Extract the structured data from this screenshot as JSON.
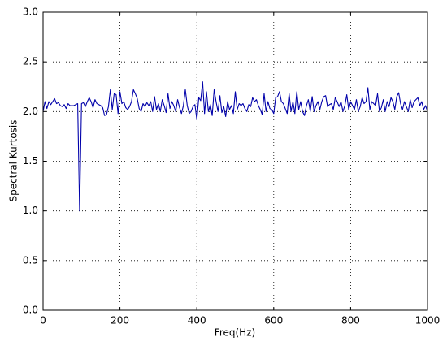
{
  "chart_data": {
    "type": "line",
    "xlabel": "Freq(Hz)",
    "ylabel": "Spectral Kurtosis",
    "x": [
      0,
      5,
      10,
      15,
      20,
      25,
      30,
      35,
      40,
      45,
      50,
      55,
      60,
      65,
      70,
      75,
      80,
      85,
      90,
      95,
      100,
      105,
      110,
      115,
      120,
      125,
      130,
      135,
      140,
      145,
      150,
      155,
      160,
      165,
      170,
      175,
      180,
      185,
      190,
      195,
      200,
      205,
      210,
      215,
      220,
      225,
      230,
      235,
      240,
      245,
      250,
      255,
      260,
      265,
      270,
      275,
      280,
      285,
      290,
      295,
      300,
      305,
      310,
      315,
      320,
      325,
      330,
      335,
      340,
      345,
      350,
      355,
      360,
      365,
      370,
      375,
      380,
      385,
      390,
      395,
      400,
      405,
      410,
      415,
      420,
      425,
      430,
      435,
      440,
      445,
      450,
      455,
      460,
      465,
      470,
      475,
      480,
      485,
      490,
      495,
      500,
      505,
      510,
      515,
      520,
      525,
      530,
      535,
      540,
      545,
      550,
      555,
      560,
      565,
      570,
      575,
      580,
      585,
      590,
      595,
      600,
      605,
      610,
      615,
      620,
      625,
      630,
      635,
      640,
      645,
      650,
      655,
      660,
      665,
      670,
      675,
      680,
      685,
      690,
      695,
      700,
      705,
      710,
      715,
      720,
      725,
      730,
      735,
      740,
      745,
      750,
      755,
      760,
      765,
      770,
      775,
      780,
      785,
      790,
      795,
      800,
      805,
      810,
      815,
      820,
      825,
      830,
      835,
      840,
      845,
      850,
      855,
      860,
      865,
      870,
      875,
      880,
      885,
      890,
      895,
      900,
      905,
      910,
      915,
      920,
      925,
      930,
      935,
      940,
      945,
      950,
      955,
      960,
      965,
      970,
      975,
      980,
      985,
      990,
      995,
      1000
    ],
    "series": [
      {
        "color": "#0000aa",
        "values": [
          2.0,
          2.1,
          2.03,
          2.1,
          2.07,
          2.1,
          2.13,
          2.08,
          2.09,
          2.06,
          2.05,
          2.07,
          2.03,
          2.08,
          2.06,
          2.06,
          2.06,
          2.07,
          2.08,
          1.0,
          2.08,
          2.09,
          2.05,
          2.1,
          2.14,
          2.1,
          2.04,
          2.12,
          2.08,
          2.07,
          2.06,
          2.04,
          1.96,
          1.97,
          2.05,
          2.22,
          2.02,
          2.18,
          2.17,
          1.98,
          2.2,
          2.08,
          2.1,
          2.04,
          2.02,
          2.05,
          2.1,
          2.22,
          2.18,
          2.13,
          2.03,
          2.0,
          2.08,
          2.05,
          2.09,
          2.06,
          2.1,
          2.0,
          2.15,
          2.02,
          2.08,
          2.0,
          2.12,
          2.06,
          1.99,
          2.18,
          2.03,
          2.1,
          2.06,
          2.0,
          2.12,
          2.04,
          1.98,
          2.06,
          2.22,
          2.06,
          1.98,
          2.0,
          2.05,
          2.07,
          1.92,
          2.14,
          2.11,
          2.3,
          1.98,
          2.2,
          2.0,
          2.07,
          1.96,
          2.22,
          2.1,
          2.0,
          2.16,
          1.99,
          2.05,
          1.95,
          2.1,
          2.02,
          2.06,
          1.98,
          2.2,
          2.02,
          2.08,
          2.06,
          2.08,
          2.03,
          2.0,
          2.07,
          2.05,
          2.14,
          2.1,
          2.12,
          2.06,
          2.02,
          1.97,
          2.18,
          2.0,
          2.1,
          2.03,
          2.02,
          1.98,
          2.14,
          2.15,
          2.2,
          2.1,
          2.08,
          2.03,
          1.98,
          2.18,
          2.0,
          2.1,
          1.98,
          2.2,
          2.02,
          2.1,
          2.0,
          1.96,
          2.06,
          2.12,
          2.0,
          2.15,
          2.0,
          2.06,
          2.1,
          2.02,
          2.1,
          2.15,
          2.16,
          2.05,
          2.07,
          2.08,
          2.02,
          2.14,
          2.1,
          2.05,
          2.1,
          2.0,
          2.06,
          2.17,
          2.02,
          2.1,
          2.06,
          2.02,
          2.12,
          2.0,
          2.05,
          2.14,
          2.08,
          2.1,
          2.24,
          2.02,
          2.1,
          2.08,
          2.06,
          2.18,
          2.0,
          2.04,
          2.12,
          2.0,
          2.1,
          2.05,
          2.14,
          2.1,
          2.02,
          2.15,
          2.19,
          2.08,
          2.02,
          2.1,
          2.05,
          2.0,
          2.12,
          2.04,
          2.1,
          2.12,
          2.14,
          2.06,
          2.1,
          2.02,
          2.06,
          2.0
        ]
      }
    ],
    "xlim": [
      0,
      1000
    ],
    "xticks": [
      0,
      200,
      400,
      600,
      800,
      1000
    ],
    "ylim": [
      0,
      3
    ],
    "yticks": [
      {
        "value": 0,
        "label": "0.0"
      },
      {
        "value": 0.5,
        "label": "0.5"
      },
      {
        "value": 1,
        "label": "1.0"
      },
      {
        "value": 1.5,
        "label": "1.5"
      },
      {
        "value": 2,
        "label": "2.0"
      },
      {
        "value": 2.5,
        "label": "2.5"
      },
      {
        "value": 3,
        "label": "3.0"
      }
    ],
    "grid": true
  }
}
